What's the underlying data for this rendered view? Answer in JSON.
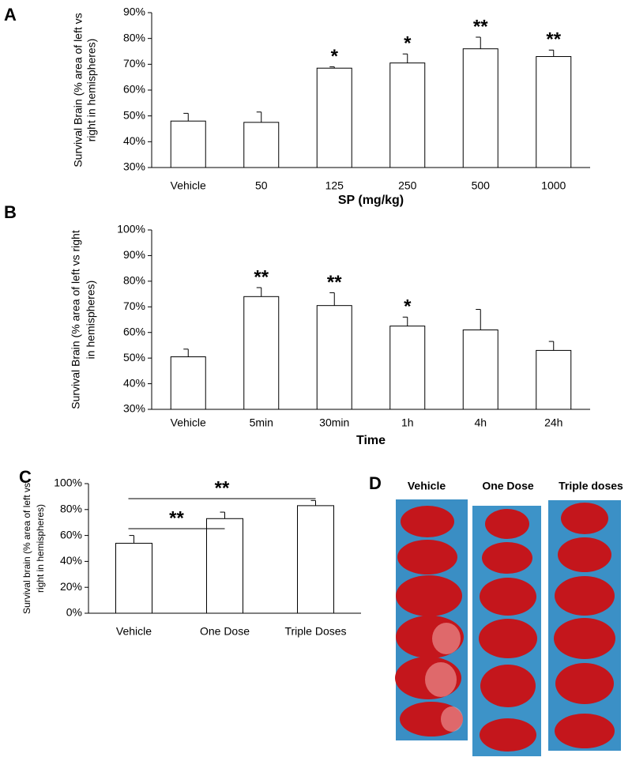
{
  "chart_data": [
    {
      "type": "bar",
      "panel": "A",
      "ylabel_lines": [
        "Survival Brain (% area of left vs",
        "right in hemispheres)"
      ],
      "xlabel": "SP (mg/kg)",
      "categories": [
        "Vehicle",
        "50",
        "125",
        "250",
        "500",
        "1000"
      ],
      "values": [
        48,
        47.5,
        68.5,
        70.5,
        76,
        73
      ],
      "errors": [
        3,
        4,
        0.5,
        3.5,
        4.5,
        2.5
      ],
      "annotations": [
        null,
        null,
        "*",
        "*",
        "**",
        "**"
      ],
      "color": "#ffffff",
      "ylim": [
        30,
        90
      ],
      "yticks": [
        {
          "value": 30,
          "label": "30%"
        },
        {
          "value": 40,
          "label": "40%"
        },
        {
          "value": 50,
          "label": "50%"
        },
        {
          "value": 60,
          "label": "60%"
        },
        {
          "value": 70,
          "label": "70%"
        },
        {
          "value": 80,
          "label": "80%"
        },
        {
          "value": 90,
          "label": "90%"
        }
      ],
      "grid": false
    },
    {
      "type": "bar",
      "panel": "B",
      "ylabel_lines": [
        "Survival Brain (% area of left vs right",
        "in hemispheres)"
      ],
      "xlabel": "Time",
      "categories": [
        "Vehicle",
        "5min",
        "30min",
        "1h",
        "4h",
        "24h"
      ],
      "values": [
        50.5,
        74,
        70.5,
        62.5,
        61,
        53
      ],
      "errors": [
        3,
        3.5,
        5,
        3.5,
        8,
        3.5
      ],
      "annotations": [
        null,
        "**",
        "**",
        "*",
        null,
        null
      ],
      "color": "#ffffff",
      "ylim": [
        30,
        100
      ],
      "yticks": [
        {
          "value": 30,
          "label": "30%"
        },
        {
          "value": 40,
          "label": "40%"
        },
        {
          "value": 50,
          "label": "50%"
        },
        {
          "value": 60,
          "label": "60%"
        },
        {
          "value": 70,
          "label": "70%"
        },
        {
          "value": 80,
          "label": "80%"
        },
        {
          "value": 90,
          "label": "90%"
        },
        {
          "value": 100,
          "label": "100%"
        }
      ],
      "grid": false
    },
    {
      "type": "bar",
      "panel": "C",
      "ylabel_lines": [
        "Survival brain (% area of left vs",
        "right in hemispheres)"
      ],
      "categories": [
        "Vehicle",
        "One Dose",
        "Triple Doses"
      ],
      "values": [
        54,
        73,
        83
      ],
      "errors": [
        6,
        5,
        4
      ],
      "comparisons": [
        {
          "groups": [
            "Vehicle",
            "One Dose"
          ],
          "label": "**"
        },
        {
          "groups": [
            "Vehicle",
            "Triple Doses"
          ],
          "label": "**"
        }
      ],
      "color": "#ffffff",
      "ylim": [
        0,
        100
      ],
      "yticks": [
        {
          "value": 0,
          "label": "0%"
        },
        {
          "value": 20,
          "label": "20%"
        },
        {
          "value": 40,
          "label": "40%"
        },
        {
          "value": 60,
          "label": "60%"
        },
        {
          "value": 80,
          "label": "80%"
        },
        {
          "value": 100,
          "label": "100%"
        }
      ],
      "grid": false
    }
  ],
  "panel_d": {
    "panel": "D",
    "columns": [
      "Vehicle",
      "One Dose",
      "Triple doses"
    ]
  }
}
